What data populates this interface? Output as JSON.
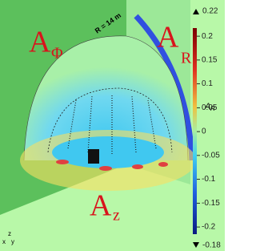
{
  "labels": {
    "a_phi": "A",
    "a_phi_sub": "Φ",
    "a_r": "A",
    "a_r_sub": "R",
    "a_z": "A",
    "a_z_sub": "z",
    "radius": "R = 14 m"
  },
  "colorbar": {
    "title": "A",
    "title_sub": "R",
    "lim": [
      -0.215,
      0.217
    ],
    "ticks": [
      0.2,
      0.15,
      0.1,
      0.05,
      0,
      -0.05,
      -0.1,
      -0.15,
      -0.2
    ],
    "max": 0.22,
    "min": -0.18
  },
  "axes": {
    "z": "z",
    "x": "x",
    "y": "y"
  }
}
